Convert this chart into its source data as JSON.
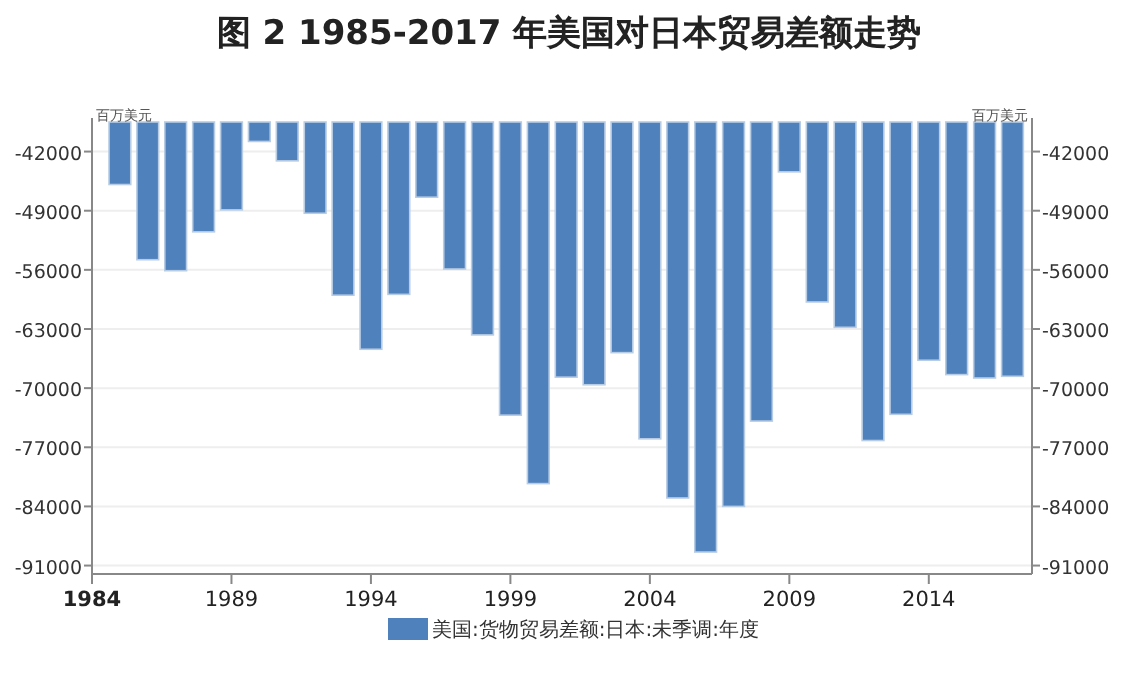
{
  "chart_data": {
    "type": "bar",
    "title": "图 2 1985-2017 年美国对日本贸易差额走势",
    "x": [
      1985,
      1986,
      1987,
      1988,
      1989,
      1990,
      1991,
      1992,
      1993,
      1994,
      1995,
      1996,
      1997,
      1998,
      1999,
      2000,
      2001,
      2002,
      2003,
      2004,
      2005,
      2006,
      2007,
      2008,
      2009,
      2010,
      2011,
      2012,
      2013,
      2014,
      2015,
      2016,
      2017
    ],
    "series": [
      {
        "name": "美国:货物贸易差额:日本:未季调:年度",
        "color": "#4f81bd",
        "values": [
          -45900,
          -54800,
          -56100,
          -51500,
          -48900,
          -40800,
          -43100,
          -49300,
          -59000,
          -65400,
          -58900,
          -47400,
          -55900,
          -63700,
          -73200,
          -81300,
          -68700,
          -69600,
          -65800,
          -76000,
          -83000,
          -89400,
          -84000,
          -73900,
          -44400,
          -59800,
          -62800,
          -76200,
          -73100,
          -66700,
          -68400,
          -68800,
          -68600
        ]
      }
    ],
    "xlim": [
      1984,
      2017.7
    ],
    "xticks": [
      1984,
      1989,
      1994,
      1999,
      2004,
      2009,
      2014
    ],
    "ylim": [
      -92000,
      -38500
    ],
    "yticks": [
      -42000,
      -49000,
      -56000,
      -63000,
      -70000,
      -77000,
      -84000,
      -91000
    ],
    "y2lim": [
      -92000,
      -38500
    ],
    "y2ticks": [
      -42000,
      -49000,
      -56000,
      -63000,
      -70000,
      -77000,
      -84000,
      -91000
    ],
    "ylabel": "百万美元",
    "y2label": "百万美元",
    "grid": "y",
    "legend": "bottom"
  }
}
